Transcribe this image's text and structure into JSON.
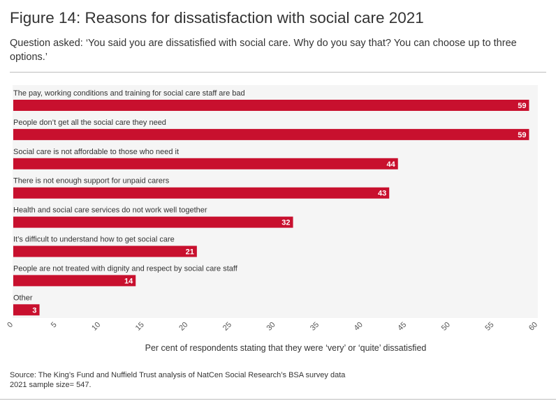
{
  "figure": {
    "title": "Figure 14: Reasons for dissatisfaction with social care 2021",
    "subtitle": "Question asked: ‘You said you are dissatisfied with social care. Why do you say that? You can choose up to three options.’",
    "source_line1": "Source: The King’s Fund and Nuffield Trust analysis of NatCen Social Research’s BSA survey data",
    "source_line2": "2021 sample size= 547."
  },
  "chart_data": {
    "type": "bar",
    "orientation": "horizontal",
    "categories": [
      "The pay, working conditions and training for social care staff are bad",
      "People don’t get all the social care they need",
      "Social care is not affordable to those who need it",
      "There is not enough support for unpaid carers",
      "Health and social care services do not work well together",
      "It’s difficult to understand how to get social care",
      "People are not treated with dignity and respect by social care staff",
      "Other"
    ],
    "values": [
      59,
      59,
      44,
      43,
      32,
      21,
      14,
      3
    ],
    "xlabel": "Per cent of respondents stating that they were ‘very’ or ‘quite’ dissatisfied",
    "ylabel": "",
    "xlim": [
      0,
      60
    ],
    "xticks": [
      0,
      5,
      10,
      15,
      20,
      25,
      30,
      35,
      40,
      45,
      50,
      55,
      60
    ],
    "bar_color": "#c8102e",
    "plot_bg": "#f5f5f5",
    "data_labels": true,
    "grid": false
  }
}
